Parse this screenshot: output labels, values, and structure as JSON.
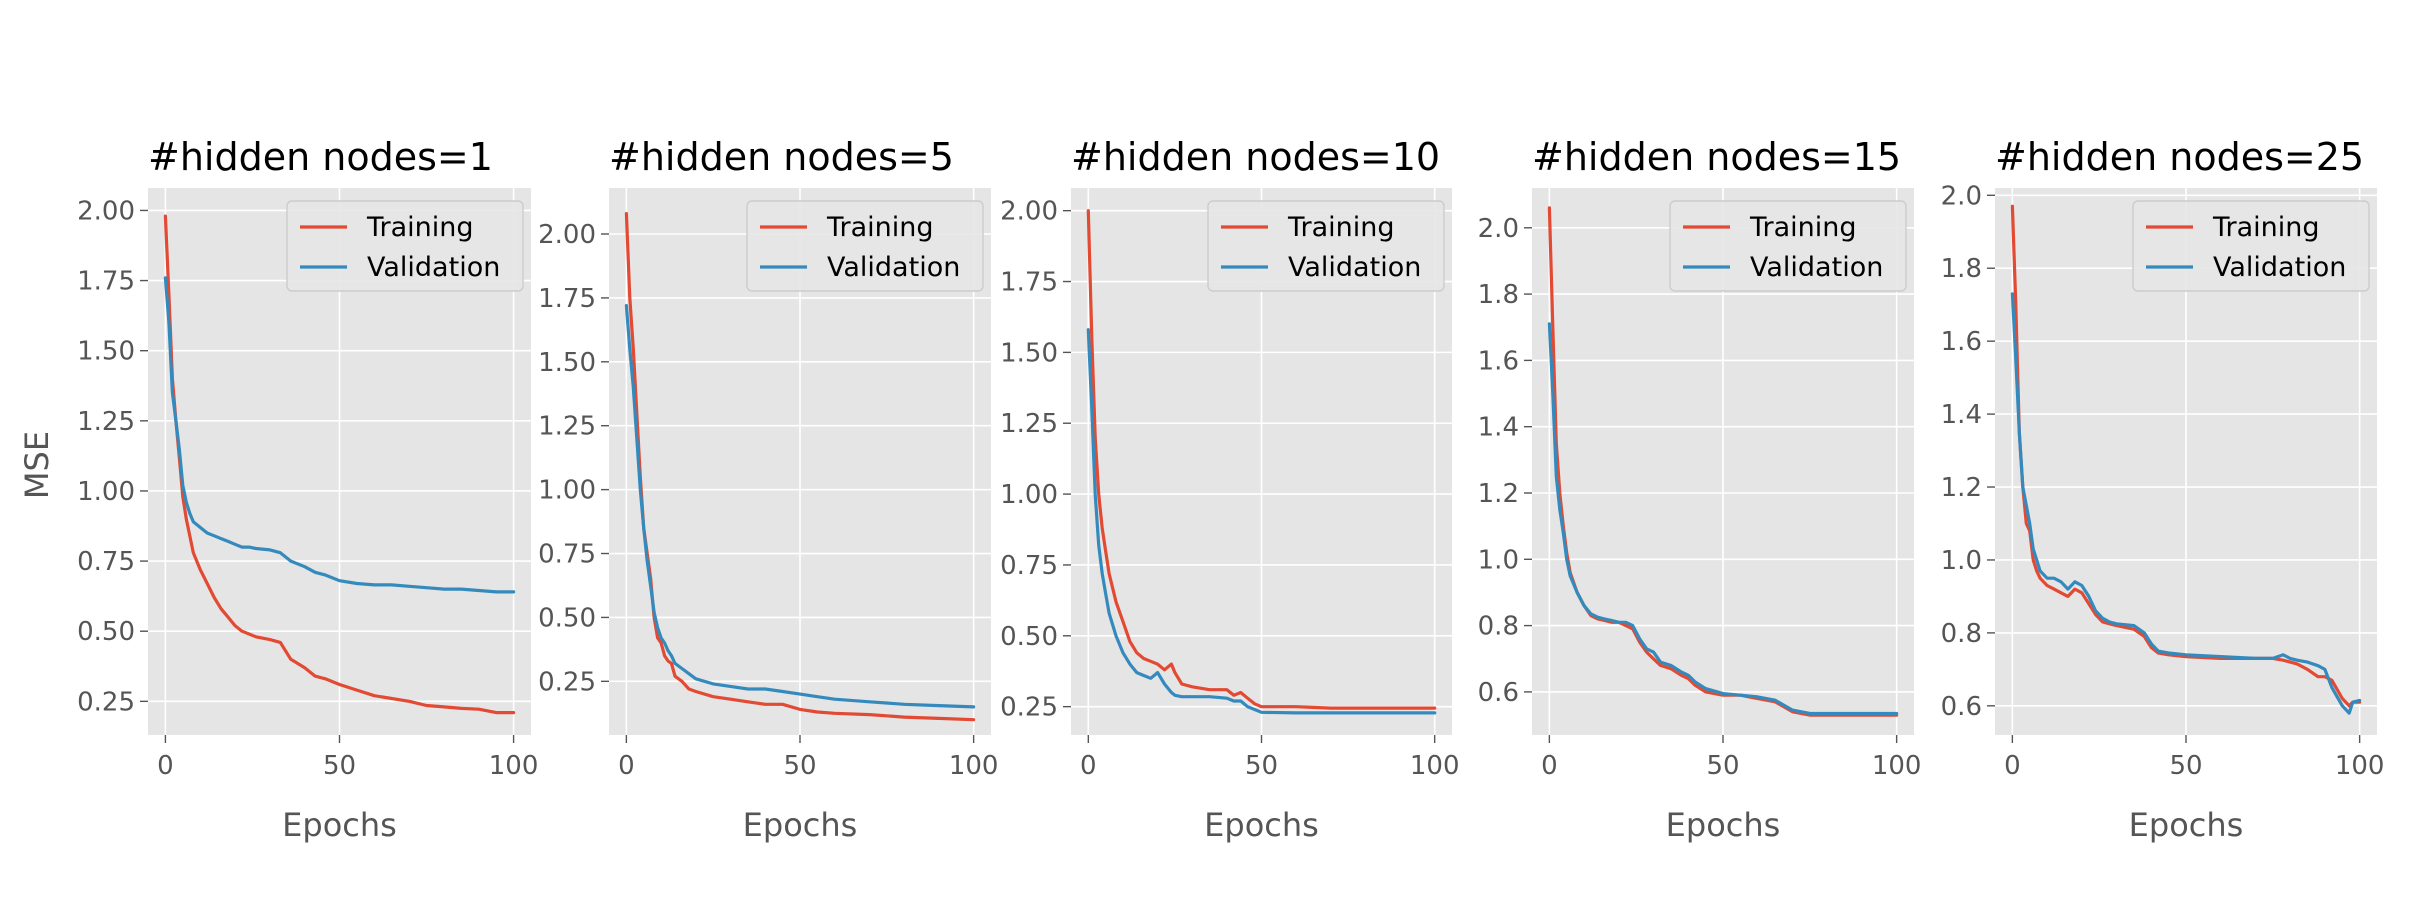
{
  "figure": {
    "ylabel": "MSE",
    "colors": {
      "training": "#e24a33",
      "validation": "#348abd"
    }
  },
  "chart_data": [
    {
      "type": "line",
      "title": "#hidden nodes=1",
      "xlabel": "Epochs",
      "ylabel": "MSE",
      "xlim": [
        -5,
        105
      ],
      "ylim": [
        0.13,
        2.08
      ],
      "xticks": [
        0,
        50,
        100
      ],
      "yticks": [
        0.25,
        0.5,
        0.75,
        1.0,
        1.25,
        1.5,
        1.75,
        2.0
      ],
      "yticklabels": [
        "0.25",
        "0.50",
        "0.75",
        "1.00",
        "1.25",
        "1.50",
        "1.75",
        "2.00"
      ],
      "legend": "top-right",
      "grid": true,
      "series": [
        {
          "name": "Training",
          "x": [
            0,
            1,
            2,
            3,
            4,
            5,
            6,
            7,
            8,
            10,
            12,
            14,
            16,
            18,
            20,
            22,
            24,
            26,
            30,
            33,
            36,
            40,
            43,
            46,
            50,
            55,
            60,
            65,
            70,
            75,
            80,
            85,
            90,
            95,
            100
          ],
          "y": [
            1.98,
            1.7,
            1.4,
            1.25,
            1.12,
            0.98,
            0.9,
            0.84,
            0.78,
            0.72,
            0.67,
            0.62,
            0.58,
            0.55,
            0.52,
            0.5,
            0.49,
            0.48,
            0.47,
            0.46,
            0.4,
            0.37,
            0.34,
            0.33,
            0.31,
            0.29,
            0.27,
            0.26,
            0.25,
            0.235,
            0.23,
            0.225,
            0.222,
            0.21,
            0.21
          ]
        },
        {
          "name": "Validation",
          "x": [
            0,
            1,
            2,
            3,
            4,
            5,
            6,
            7,
            8,
            10,
            12,
            14,
            16,
            18,
            20,
            22,
            24,
            26,
            30,
            33,
            36,
            40,
            43,
            46,
            50,
            55,
            60,
            65,
            70,
            75,
            80,
            85,
            90,
            95,
            100
          ],
          "y": [
            1.76,
            1.6,
            1.35,
            1.25,
            1.15,
            1.02,
            0.96,
            0.92,
            0.89,
            0.87,
            0.85,
            0.84,
            0.83,
            0.82,
            0.81,
            0.8,
            0.8,
            0.795,
            0.79,
            0.78,
            0.75,
            0.73,
            0.71,
            0.7,
            0.68,
            0.67,
            0.665,
            0.665,
            0.66,
            0.655,
            0.65,
            0.65,
            0.645,
            0.64,
            0.64
          ]
        }
      ]
    },
    {
      "type": "line",
      "title": "#hidden nodes=5",
      "xlabel": "Epochs",
      "xlim": [
        -5,
        105
      ],
      "ylim": [
        0.04,
        2.18
      ],
      "xticks": [
        0,
        50,
        100
      ],
      "yticks": [
        0.25,
        0.5,
        0.75,
        1.0,
        1.25,
        1.5,
        1.75,
        2.0
      ],
      "yticklabels": [
        "0.25",
        "0.50",
        "0.75",
        "1.00",
        "1.25",
        "1.50",
        "1.75",
        "2.00"
      ],
      "legend": "top-right",
      "grid": true,
      "series": [
        {
          "name": "Training",
          "x": [
            0,
            1,
            2,
            3,
            4,
            5,
            6,
            7,
            8,
            9,
            10,
            11,
            12,
            13,
            14,
            16,
            18,
            20,
            25,
            30,
            35,
            40,
            45,
            50,
            55,
            60,
            70,
            80,
            90,
            100
          ],
          "y": [
            2.08,
            1.75,
            1.55,
            1.3,
            1.05,
            0.85,
            0.75,
            0.65,
            0.5,
            0.42,
            0.4,
            0.35,
            0.33,
            0.32,
            0.27,
            0.25,
            0.22,
            0.21,
            0.19,
            0.18,
            0.17,
            0.16,
            0.16,
            0.14,
            0.13,
            0.125,
            0.12,
            0.11,
            0.105,
            0.1
          ]
        },
        {
          "name": "Validation",
          "x": [
            0,
            1,
            2,
            3,
            4,
            5,
            6,
            7,
            8,
            9,
            10,
            11,
            12,
            13,
            14,
            16,
            18,
            20,
            25,
            30,
            35,
            40,
            45,
            50,
            55,
            60,
            70,
            80,
            90,
            100
          ],
          "y": [
            1.72,
            1.55,
            1.4,
            1.2,
            1.0,
            0.85,
            0.72,
            0.62,
            0.52,
            0.46,
            0.42,
            0.4,
            0.37,
            0.35,
            0.32,
            0.3,
            0.28,
            0.26,
            0.24,
            0.23,
            0.22,
            0.22,
            0.21,
            0.2,
            0.19,
            0.18,
            0.17,
            0.16,
            0.155,
            0.15
          ]
        }
      ]
    },
    {
      "type": "line",
      "title": "#hidden nodes=10",
      "xlabel": "Epochs",
      "xlim": [
        -5,
        105
      ],
      "ylim": [
        0.15,
        2.08
      ],
      "xticks": [
        0,
        50,
        100
      ],
      "yticks": [
        0.25,
        0.5,
        0.75,
        1.0,
        1.25,
        1.5,
        1.75,
        2.0
      ],
      "yticklabels": [
        "0.25",
        "0.50",
        "0.75",
        "1.00",
        "1.25",
        "1.50",
        "1.75",
        "2.00"
      ],
      "legend": "top-right",
      "grid": true,
      "series": [
        {
          "name": "Training",
          "x": [
            0,
            1,
            2,
            3,
            4,
            5,
            6,
            8,
            10,
            12,
            14,
            16,
            18,
            20,
            22,
            24,
            25,
            27,
            30,
            35,
            40,
            42,
            44,
            46,
            48,
            50,
            60,
            70,
            80,
            90,
            100
          ],
          "y": [
            2.0,
            1.55,
            1.2,
            1.0,
            0.88,
            0.8,
            0.72,
            0.62,
            0.55,
            0.48,
            0.44,
            0.42,
            0.41,
            0.4,
            0.38,
            0.4,
            0.37,
            0.33,
            0.32,
            0.31,
            0.31,
            0.29,
            0.3,
            0.28,
            0.26,
            0.25,
            0.25,
            0.245,
            0.245,
            0.245,
            0.245
          ]
        },
        {
          "name": "Validation",
          "x": [
            0,
            1,
            2,
            3,
            4,
            5,
            6,
            8,
            10,
            12,
            14,
            16,
            18,
            20,
            22,
            24,
            25,
            27,
            30,
            35,
            40,
            42,
            44,
            46,
            48,
            50,
            60,
            70,
            80,
            90,
            100
          ],
          "y": [
            1.58,
            1.3,
            1.0,
            0.82,
            0.72,
            0.65,
            0.58,
            0.5,
            0.44,
            0.4,
            0.37,
            0.36,
            0.35,
            0.37,
            0.33,
            0.3,
            0.29,
            0.285,
            0.285,
            0.285,
            0.28,
            0.27,
            0.27,
            0.25,
            0.24,
            0.23,
            0.228,
            0.228,
            0.228,
            0.228,
            0.228
          ]
        }
      ]
    },
    {
      "type": "line",
      "title": "#hidden nodes=15",
      "xlabel": "Epochs",
      "xlim": [
        -5,
        105
      ],
      "ylim": [
        0.47,
        2.12
      ],
      "xticks": [
        0,
        50,
        100
      ],
      "yticks": [
        0.6,
        0.8,
        1.0,
        1.2,
        1.4,
        1.6,
        1.8,
        2.0
      ],
      "yticklabels": [
        "0.6",
        "0.8",
        "1.0",
        "1.2",
        "1.4",
        "1.6",
        "1.8",
        "2.0"
      ],
      "legend": "top-right",
      "grid": true,
      "series": [
        {
          "name": "Training",
          "x": [
            0,
            1,
            2,
            3,
            4,
            5,
            6,
            8,
            10,
            12,
            14,
            16,
            18,
            20,
            22,
            24,
            26,
            28,
            30,
            32,
            35,
            38,
            40,
            42,
            45,
            50,
            55,
            60,
            65,
            70,
            75,
            80,
            90,
            100
          ],
          "y": [
            2.06,
            1.7,
            1.35,
            1.2,
            1.1,
            1.02,
            0.96,
            0.9,
            0.86,
            0.83,
            0.82,
            0.815,
            0.81,
            0.81,
            0.8,
            0.79,
            0.75,
            0.72,
            0.7,
            0.68,
            0.67,
            0.65,
            0.64,
            0.62,
            0.6,
            0.59,
            0.59,
            0.58,
            0.57,
            0.54,
            0.53,
            0.53,
            0.53,
            0.53
          ]
        },
        {
          "name": "Validation",
          "x": [
            0,
            1,
            2,
            3,
            4,
            5,
            6,
            8,
            10,
            12,
            14,
            16,
            18,
            20,
            22,
            24,
            26,
            28,
            30,
            32,
            35,
            38,
            40,
            42,
            45,
            50,
            55,
            60,
            65,
            70,
            75,
            80,
            90,
            100
          ],
          "y": [
            1.71,
            1.5,
            1.25,
            1.15,
            1.08,
            1.0,
            0.95,
            0.9,
            0.86,
            0.835,
            0.825,
            0.82,
            0.815,
            0.81,
            0.81,
            0.8,
            0.76,
            0.73,
            0.72,
            0.69,
            0.68,
            0.66,
            0.65,
            0.63,
            0.61,
            0.595,
            0.59,
            0.585,
            0.575,
            0.545,
            0.535,
            0.535,
            0.535,
            0.535
          ]
        }
      ]
    },
    {
      "type": "line",
      "title": "#hidden nodes=25",
      "xlabel": "Epochs",
      "xlim": [
        -5,
        105
      ],
      "ylim": [
        0.52,
        2.02
      ],
      "xticks": [
        0,
        50,
        100
      ],
      "yticks": [
        0.6,
        0.8,
        1.0,
        1.2,
        1.4,
        1.6,
        1.8,
        2.0
      ],
      "yticklabels": [
        "0.6",
        "0.8",
        "1.0",
        "1.2",
        "1.4",
        "1.6",
        "1.8",
        "2.0"
      ],
      "legend": "top-right",
      "grid": true,
      "series": [
        {
          "name": "Training",
          "x": [
            0,
            1,
            2,
            3,
            4,
            5,
            6,
            7,
            8,
            10,
            12,
            14,
            16,
            18,
            20,
            22,
            24,
            26,
            28,
            30,
            35,
            38,
            40,
            42,
            45,
            50,
            60,
            70,
            75,
            78,
            80,
            82,
            85,
            88,
            90,
            92,
            95,
            97,
            98,
            100
          ],
          "y": [
            1.97,
            1.7,
            1.35,
            1.2,
            1.1,
            1.08,
            1.0,
            0.97,
            0.95,
            0.93,
            0.92,
            0.91,
            0.9,
            0.92,
            0.91,
            0.88,
            0.85,
            0.83,
            0.825,
            0.82,
            0.81,
            0.79,
            0.76,
            0.745,
            0.74,
            0.735,
            0.73,
            0.73,
            0.73,
            0.725,
            0.72,
            0.715,
            0.7,
            0.68,
            0.68,
            0.67,
            0.62,
            0.6,
            0.61,
            0.61
          ]
        },
        {
          "name": "Validation",
          "x": [
            0,
            1,
            2,
            3,
            4,
            5,
            6,
            7,
            8,
            10,
            12,
            14,
            16,
            18,
            20,
            22,
            24,
            26,
            28,
            30,
            35,
            38,
            40,
            42,
            45,
            50,
            60,
            70,
            75,
            78,
            80,
            82,
            85,
            88,
            90,
            92,
            95,
            97,
            98,
            100
          ],
          "y": [
            1.73,
            1.55,
            1.35,
            1.2,
            1.15,
            1.1,
            1.03,
            1.0,
            0.97,
            0.95,
            0.95,
            0.94,
            0.92,
            0.94,
            0.93,
            0.9,
            0.86,
            0.84,
            0.83,
            0.825,
            0.82,
            0.8,
            0.77,
            0.75,
            0.745,
            0.74,
            0.735,
            0.73,
            0.73,
            0.74,
            0.73,
            0.725,
            0.72,
            0.71,
            0.7,
            0.65,
            0.6,
            0.58,
            0.61,
            0.615
          ]
        }
      ]
    }
  ]
}
